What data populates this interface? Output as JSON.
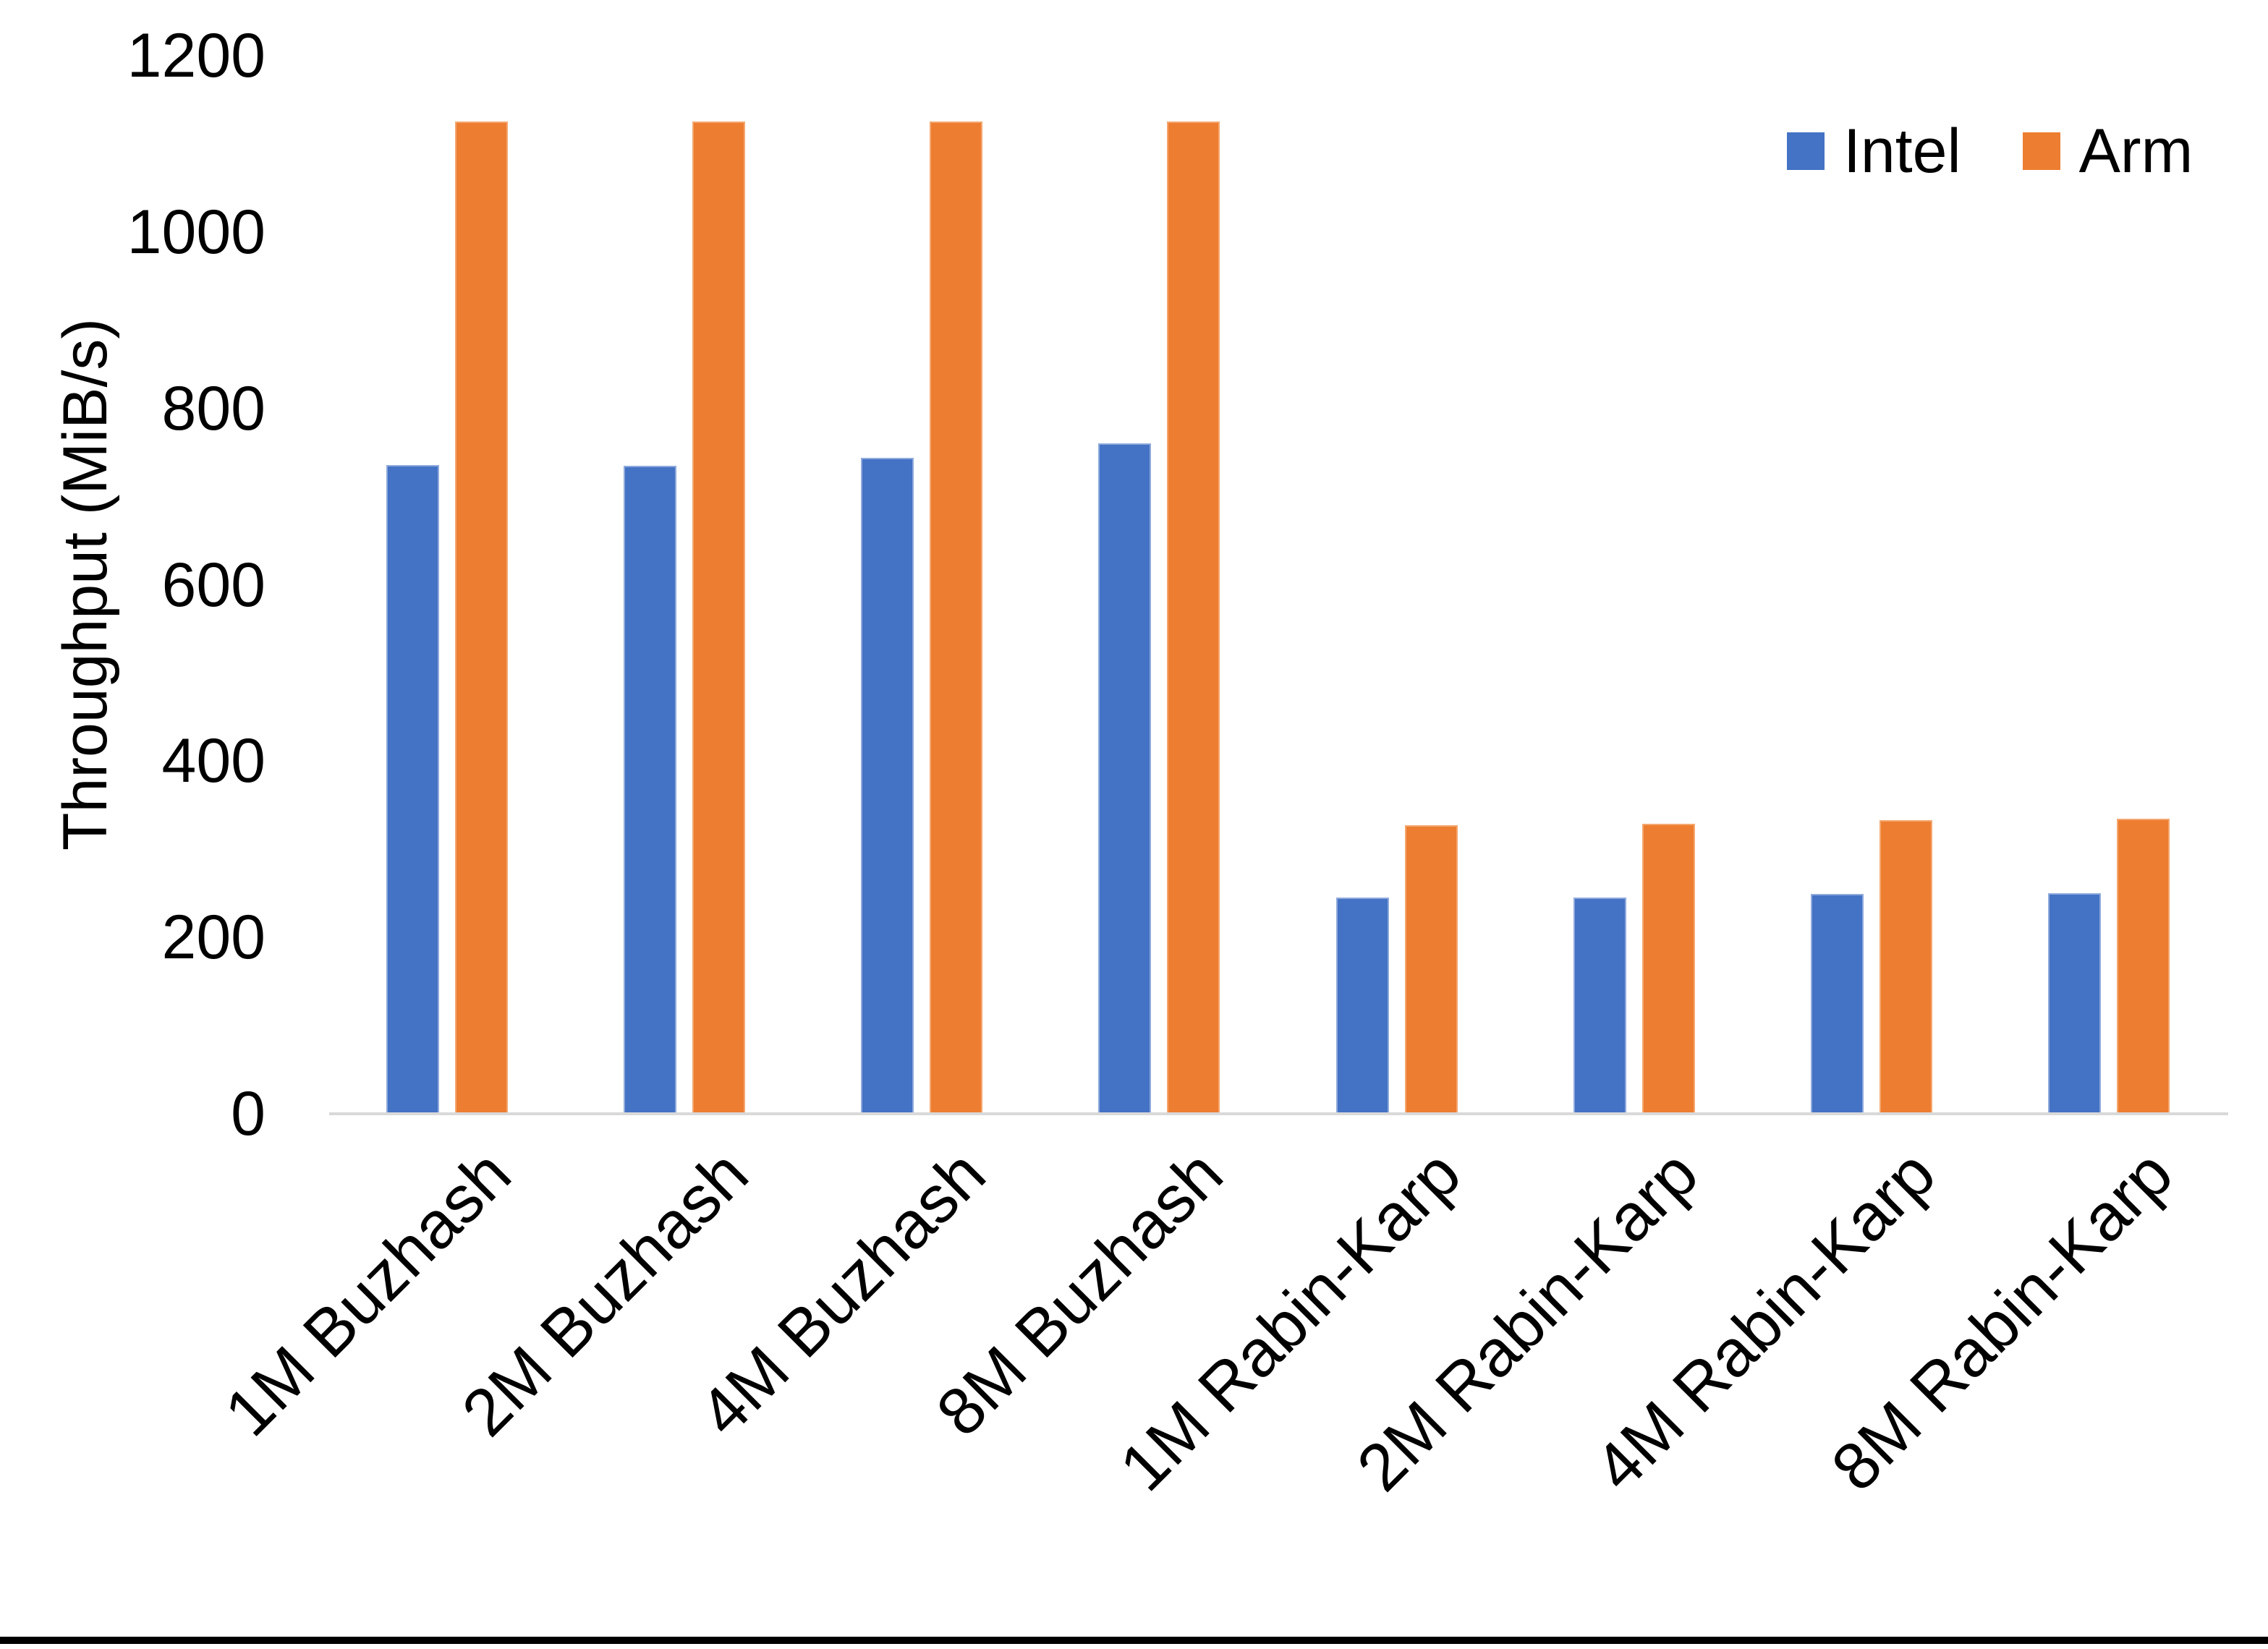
{
  "chart_data": {
    "type": "bar",
    "title": "",
    "ylabel": "Throughput (MiB/s)",
    "xlabel": "",
    "categories": [
      "1M Buzhash",
      "2M Buzhash",
      "4M Buzhash",
      "8M Buzhash",
      "1M Rabin-Karp",
      "2M Rabin-Karp",
      "4M Rabin-Karp",
      "8M Rabin-Karp"
    ],
    "series": [
      {
        "name": "Intel",
        "color": "#4472C4",
        "values": [
          736,
          735,
          744,
          760,
          245,
          245,
          249,
          250
        ]
      },
      {
        "name": "Arm",
        "color": "#ED7D31",
        "values": [
          1125,
          1125,
          1125,
          1125,
          327,
          329,
          333,
          335
        ]
      }
    ],
    "ylim": [
      0,
      1200
    ],
    "yticks": [
      0,
      200,
      400,
      600,
      800,
      1000,
      1200
    ],
    "grid": false,
    "legend_position": "top-right"
  },
  "style": {
    "background_color": "#FFFFFF",
    "axis_line_color": "#D9D9D9",
    "text_color": "#000000",
    "bottom_edge_bar_color": "#000000"
  }
}
